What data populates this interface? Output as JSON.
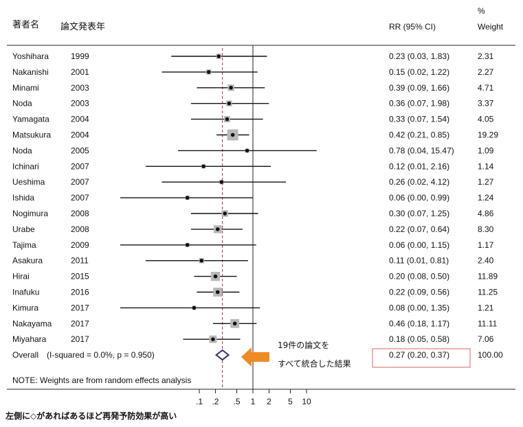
{
  "headers": {
    "author": "著者名",
    "year": "論文発表年",
    "rr": "RR (95% CI)",
    "weight_line1": "%",
    "weight_line2": "Weight"
  },
  "overall_label": "Overall",
  "heterogeneity": "(I-squared = 0.0%, p = 0.950)",
  "note": "NOTE: Weights are from random effects analysis",
  "callout": {
    "line1": "19件の論文を",
    "line2": "すべて統合した結果"
  },
  "footnote": "左側に◇があればあるほど再発予防効果が高い",
  "colors": {
    "reference_line": "#a0303a",
    "overall_diamond": "#3a2f6e",
    "arrow": "#f08a24",
    "highlight_box": "#e06060",
    "weight_square": "#b8b8b8"
  },
  "chart_data": {
    "type": "forest",
    "scale": "log",
    "xlim": [
      0.06,
      15
    ],
    "x_ticks": [
      {
        "value": 0.1,
        "label": ".1"
      },
      {
        "value": 0.2,
        "label": ".2"
      },
      {
        "value": 0.5,
        "label": ".5"
      },
      {
        "value": 1,
        "label": "1"
      },
      {
        "value": 2,
        "label": "2"
      },
      {
        "value": 5,
        "label": "5"
      },
      {
        "value": 10,
        "label": "10"
      }
    ],
    "null_line": 1,
    "overall_line": 0.27,
    "studies": [
      {
        "author": "Yoshihara",
        "year": "1999",
        "rr": 0.23,
        "lo": 0.03,
        "hi": 1.83,
        "ci_text": "0.23 (0.03, 1.83)",
        "weight": "2.31"
      },
      {
        "author": "Nakanishi",
        "year": "2001",
        "rr": 0.15,
        "lo": 0.02,
        "hi": 1.22,
        "ci_text": "0.15 (0.02, 1.22)",
        "weight": "2.27"
      },
      {
        "author": "Minami",
        "year": "2003",
        "rr": 0.39,
        "lo": 0.09,
        "hi": 1.66,
        "ci_text": "0.39 (0.09, 1.66)",
        "weight": "4.71"
      },
      {
        "author": "Noda",
        "year": "2003",
        "rr": 0.36,
        "lo": 0.07,
        "hi": 1.98,
        "ci_text": "0.36 (0.07, 1.98)",
        "weight": "3.37"
      },
      {
        "author": "Yamagata",
        "year": "2004",
        "rr": 0.33,
        "lo": 0.07,
        "hi": 1.54,
        "ci_text": "0.33 (0.07, 1.54)",
        "weight": "4.05"
      },
      {
        "author": "Matsukura",
        "year": "2004",
        "rr": 0.42,
        "lo": 0.21,
        "hi": 0.85,
        "ci_text": "0.42 (0.21, 0.85)",
        "weight": "19.29"
      },
      {
        "author": "Noda",
        "year": "2005",
        "rr": 0.78,
        "lo": 0.04,
        "hi": 15.47,
        "ci_text": "0.78 (0.04, 15.47)",
        "weight": "1.09"
      },
      {
        "author": "Ichinari",
        "year": "2007",
        "rr": 0.12,
        "lo": 0.01,
        "hi": 2.16,
        "ci_text": "0.12 (0.01, 2.16)",
        "weight": "1.14"
      },
      {
        "author": "Ueshima",
        "year": "2007",
        "rr": 0.26,
        "lo": 0.02,
        "hi": 4.12,
        "ci_text": "0.26 (0.02, 4.12)",
        "weight": "1.27"
      },
      {
        "author": "Ishida",
        "year": "2007",
        "rr": 0.06,
        "lo": 0.0,
        "hi": 0.99,
        "ci_text": "0.06 (0.00, 0.99)",
        "weight": "1.24"
      },
      {
        "author": "Nogimura",
        "year": "2008",
        "rr": 0.3,
        "lo": 0.07,
        "hi": 1.25,
        "ci_text": "0.30 (0.07, 1.25)",
        "weight": "4.86"
      },
      {
        "author": "Urabe",
        "year": "2008",
        "rr": 0.22,
        "lo": 0.07,
        "hi": 0.64,
        "ci_text": "0.22 (0.07, 0.64)",
        "weight": "8.30"
      },
      {
        "author": "Tajima",
        "year": "2009",
        "rr": 0.06,
        "lo": 0.0,
        "hi": 1.15,
        "ci_text": "0.06 (0.00, 1.15)",
        "weight": "1.17"
      },
      {
        "author": "Asakura",
        "year": "2011",
        "rr": 0.11,
        "lo": 0.01,
        "hi": 0.81,
        "ci_text": "0.11 (0.01, 0.81)",
        "weight": "2.40"
      },
      {
        "author": "Hirai",
        "year": "2015",
        "rr": 0.2,
        "lo": 0.08,
        "hi": 0.5,
        "ci_text": "0.20 (0.08, 0.50)",
        "weight": "11.89"
      },
      {
        "author": "Inafuku",
        "year": "2016",
        "rr": 0.22,
        "lo": 0.09,
        "hi": 0.56,
        "ci_text": "0.22 (0.09, 0.56)",
        "weight": "11.25"
      },
      {
        "author": "Kimura",
        "year": "2017",
        "rr": 0.08,
        "lo": 0.0,
        "hi": 1.35,
        "ci_text": "0.08 (0.00, 1.35)",
        "weight": "1.21"
      },
      {
        "author": "Nakayama",
        "year": "2017",
        "rr": 0.46,
        "lo": 0.18,
        "hi": 1.17,
        "ci_text": "0.46 (0.18, 1.17)",
        "weight": "11.11"
      },
      {
        "author": "Miyahara",
        "year": "2017",
        "rr": 0.18,
        "lo": 0.05,
        "hi": 0.58,
        "ci_text": "0.18 (0.05, 0.58)",
        "weight": "7.06"
      }
    ],
    "overall": {
      "rr": 0.27,
      "lo": 0.2,
      "hi": 0.37,
      "ci_text": "0.27 (0.20, 0.37)",
      "weight": "100.00"
    }
  }
}
